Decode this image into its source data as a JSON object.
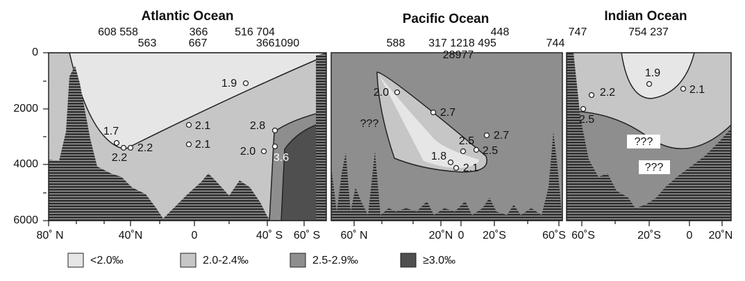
{
  "y_axis": {
    "ticks": [
      "0",
      "2000",
      "4000",
      "6000"
    ]
  },
  "panels": [
    {
      "title": "Atlantic Ocean",
      "stations": [
        "608 558",
        "563",
        "366",
        "667",
        "516 704",
        "3661090"
      ],
      "x_ticks": [
        "80˚ N",
        "40˚N",
        "0",
        "40˚ S",
        "60˚ S"
      ],
      "points": [
        "1.9",
        "2.1",
        "2.1",
        "1.7",
        "2.2",
        "2.2",
        "2.8",
        "2.0",
        "3.6"
      ]
    },
    {
      "title": "Pacific Ocean",
      "stations": [
        "448",
        "588",
        "317 1218 495",
        "28977",
        "744"
      ],
      "x_ticks": [
        "60˚ N",
        "20˚N",
        "0",
        "20˚S",
        "60˚S"
      ],
      "points": [
        "2.0",
        "2.7",
        "2.5",
        "2.7",
        "2.5",
        "1.8",
        "2.1"
      ],
      "unknown": "???"
    },
    {
      "title": "Indian Ocean",
      "stations": [
        "747",
        "754 237"
      ],
      "x_ticks": [
        "60˚S",
        "20˚S",
        "0",
        "20˚N"
      ],
      "points": [
        "1.9",
        "2.2",
        "2.1",
        "2.5"
      ],
      "unknown": [
        "???",
        "???"
      ]
    }
  ],
  "legend": [
    "<2.0‰",
    "2.0-2.4‰",
    "2.5-2.9‰",
    "≥3.0‰"
  ]
}
